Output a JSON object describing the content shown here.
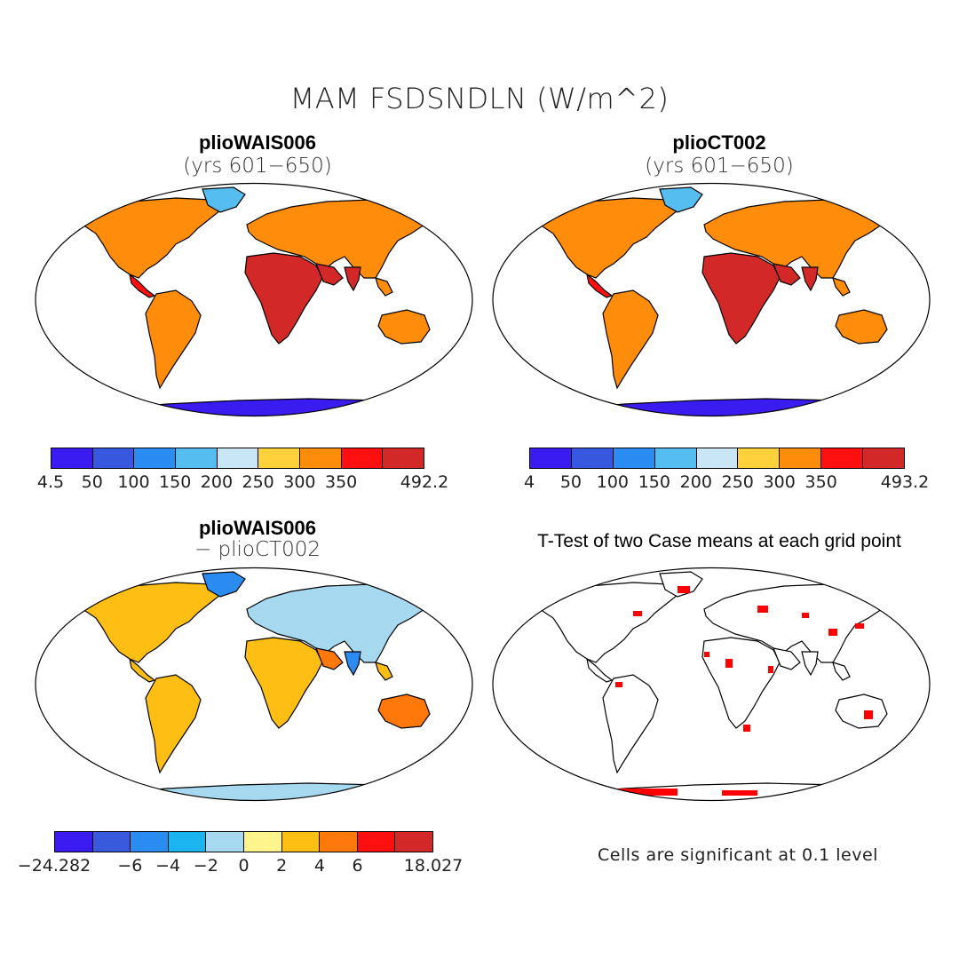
{
  "title": "MAM FSDSNDLN (W/m^2)",
  "panels": {
    "tl": {
      "name": "plioWAIS006",
      "sub": "(yrs 601−650)"
    },
    "tr": {
      "name": "plioCT002",
      "sub": "(yrs 601−650)"
    },
    "bl": {
      "name": "plioWAIS006",
      "sub": "− plioCT002"
    },
    "br": {
      "name": "T-Test of two Case means at each grid point"
    }
  },
  "colorbars": {
    "abs_colors": [
      "#3a1cf0",
      "#3657de",
      "#2a8cf0",
      "#55bdf0",
      "#c8e6f6",
      "#ffd23c",
      "#ff8c0a",
      "#ff0f0f",
      "#d22828"
    ],
    "diff_colors": [
      "#3a1cf0",
      "#3a5ade",
      "#2a8cf0",
      "#1cb4f0",
      "#a6d8f0",
      "#fff58c",
      "#ffbe14",
      "#ff780a",
      "#ff0f0f",
      "#d22828"
    ],
    "tl_labels": [
      "4.5",
      "50",
      "100",
      "150",
      "200",
      "250",
      "300",
      "350",
      "492.2"
    ],
    "tr_labels": [
      "4",
      "50",
      "100",
      "150",
      "200",
      "250",
      "300",
      "350",
      "493.2"
    ],
    "bl_labels": [
      "−24.282",
      "−6",
      "−4",
      "−2",
      "0",
      "2",
      "4",
      "6",
      "18.027"
    ]
  },
  "note": "Cells are significant at 0.1 level"
}
